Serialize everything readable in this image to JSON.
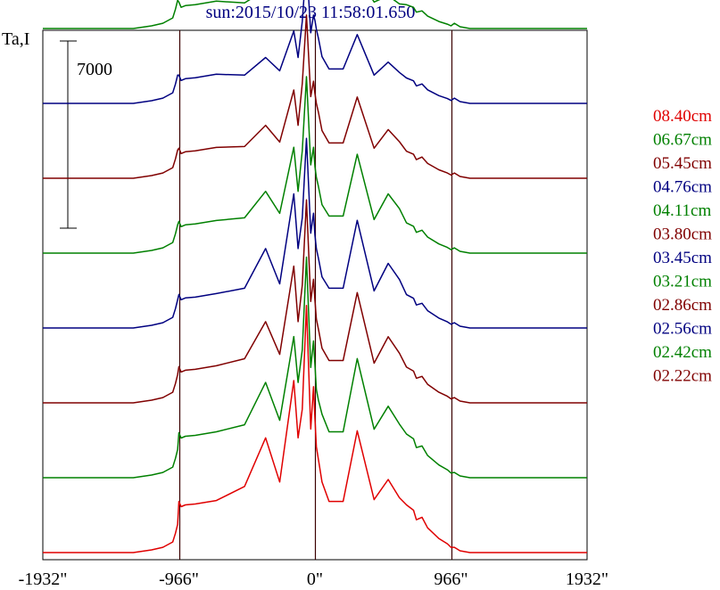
{
  "chart_data": {
    "type": "line",
    "title": "sun:2015/10/23 11:58:01.650",
    "ylabel": "Ta,I",
    "scale_bar_label": "7000",
    "x_ticks": [
      {
        "value": -1932,
        "label": "-1932\""
      },
      {
        "value": -966,
        "label": "-966\""
      },
      {
        "value": 0,
        "label": "0\""
      },
      {
        "value": 966,
        "label": "966\""
      },
      {
        "value": 1932,
        "label": "1932\""
      }
    ],
    "xlim": [
      -1932,
      1932
    ],
    "limb_lines": [
      -966,
      0,
      966
    ],
    "grid": false,
    "legend_position": "right",
    "profile_x": [
      -1932,
      -1290,
      -1160,
      -1080,
      -1010,
      -990,
      -975,
      -966,
      -950,
      -920,
      -850,
      -700,
      -500,
      -350,
      -250,
      -150,
      -120,
      -90,
      -60,
      -30,
      -10,
      0,
      10,
      25,
      50,
      100,
      200,
      300,
      420,
      520,
      600,
      650,
      700,
      720,
      760,
      800,
      880,
      940,
      966,
      990,
      1030,
      1100,
      1200,
      1300,
      1932
    ],
    "series": [
      {
        "name": "08.40cm",
        "color": "#e00000",
        "baseline": 0,
        "peaks": [
          0.52,
          0.75,
          1.3,
          1.95,
          2.8,
          1.88,
          1.52,
          1.2,
          0.8,
          0.58,
          1.38,
          0.6,
          0.2
        ]
      },
      {
        "name": "06.67cm",
        "color": "#008000",
        "baseline": 2800,
        "peaks": [
          0.45,
          0.6,
          1.08,
          1.6,
          2.5,
          1.55,
          1.28,
          1.0,
          0.72,
          0.52,
          1.35,
          0.55,
          0.18
        ]
      },
      {
        "name": "05.45cm",
        "color": "#800000",
        "baseline": 5600,
        "peaks": [
          0.35,
          0.5,
          0.92,
          1.55,
          2.3,
          1.4,
          1.16,
          0.95,
          0.62,
          0.48,
          1.25,
          0.45,
          0.15
        ]
      },
      {
        "name": "04.76cm",
        "color": "#000080",
        "baseline": 8400,
        "peaks": [
          0.32,
          0.45,
          0.9,
          1.52,
          2.15,
          1.3,
          1.05,
          0.9,
          0.58,
          0.45,
          1.22,
          0.42,
          0.14
        ]
      },
      {
        "name": "04.11cm",
        "color": "#008000",
        "baseline": 11200,
        "peaks": [
          0.3,
          0.4,
          0.7,
          1.2,
          2.0,
          1.2,
          0.98,
          0.86,
          0.55,
          0.42,
          1.12,
          0.38,
          0.13
        ]
      },
      {
        "name": "03.80cm",
        "color": "#800000",
        "baseline": 14000,
        "peaks": [
          0.28,
          0.36,
          0.6,
          1.0,
          1.85,
          1.1,
          0.96,
          0.85,
          0.54,
          0.4,
          0.92,
          0.34,
          0.12
        ]
      },
      {
        "name": "03.45cm",
        "color": "#000080",
        "baseline": 16800,
        "peaks": [
          0.26,
          0.32,
          0.52,
          0.82,
          1.6,
          1.0,
          0.94,
          0.84,
          0.53,
          0.39,
          0.78,
          0.32,
          0.11
        ]
      },
      {
        "name": "03.21cm",
        "color": "#008000",
        "baseline": 19600,
        "peaks": [
          0.24,
          0.29,
          0.44,
          0.6,
          1.35,
          0.9,
          0.9,
          0.82,
          0.52,
          0.38,
          0.62,
          0.3,
          0.1
        ]
      },
      {
        "name": "02.86cm",
        "color": "#800000",
        "baseline": 22400,
        "peaks": [
          0.22,
          0.26,
          0.36,
          0.46,
          1.0,
          0.8,
          0.86,
          0.8,
          0.52,
          0.38,
          0.48,
          0.3,
          0.09
        ]
      },
      {
        "name": "02.56cm",
        "color": "#000080",
        "baseline": 25200,
        "peaks": [
          0.2,
          0.22,
          0.3,
          0.35,
          0.72,
          0.72,
          0.82,
          0.78,
          0.52,
          0.38,
          0.38,
          0.28,
          0.08
        ]
      },
      {
        "name": "02.42cm",
        "color": "#008000",
        "baseline": 28000,
        "peaks": [
          0.18,
          0.2,
          0.26,
          0.3,
          0.55,
          0.66,
          0.78,
          0.76,
          0.5,
          0.36,
          0.32,
          0.26,
          0.08
        ]
      },
      {
        "name": "02.22cm",
        "color": "#800000",
        "baseline": 30800,
        "peaks": [
          0.16,
          0.18,
          0.22,
          0.26,
          0.45,
          0.6,
          0.74,
          0.74,
          0.5,
          0.36,
          0.28,
          0.25,
          0.07
        ]
      }
    ]
  }
}
